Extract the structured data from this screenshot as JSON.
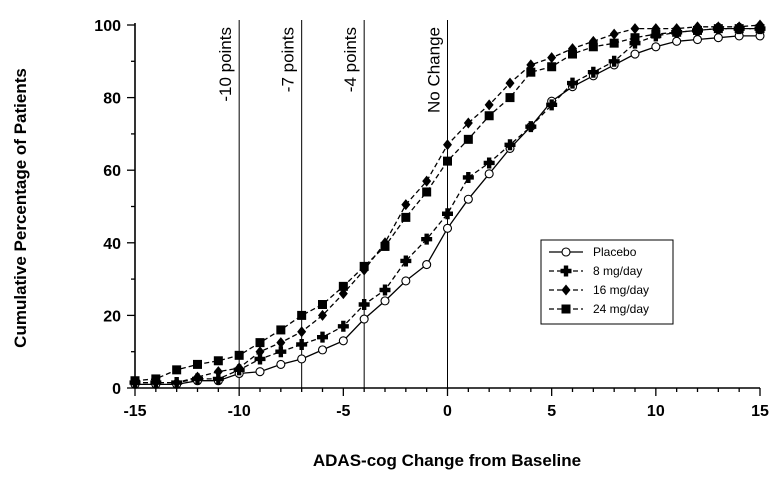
{
  "chart_data": {
    "type": "line",
    "title": "",
    "xlabel": "ADAS-cog Change from Baseline",
    "ylabel": "Cumulative Percentage of Patients",
    "xlim": [
      -15,
      15
    ],
    "ylim": [
      0,
      100
    ],
    "x_ticks": [
      -15,
      -10,
      -5,
      0,
      5,
      10,
      15
    ],
    "y_ticks": [
      0,
      20,
      40,
      60,
      80,
      100
    ],
    "grid": false,
    "legend_position": "right",
    "reference_lines": [
      {
        "x": -10,
        "label": "-10 points"
      },
      {
        "x": -7,
        "label": "-7 points"
      },
      {
        "x": -4,
        "label": "-4 points"
      },
      {
        "x": 0,
        "label": "No Change"
      }
    ],
    "x": [
      -15,
      -14,
      -13,
      -12,
      -11,
      -10,
      -9,
      -8,
      -7,
      -6,
      -5,
      -4,
      -3,
      -2,
      -1,
      0,
      1,
      2,
      3,
      4,
      5,
      6,
      7,
      8,
      9,
      10,
      11,
      12,
      13,
      14,
      15
    ],
    "series": [
      {
        "name": "Placebo",
        "marker": "open-circle",
        "dash": "solid",
        "values": [
          1,
          1,
          1,
          2,
          2,
          4,
          4.5,
          6.5,
          8,
          10.5,
          13,
          19,
          24,
          29.5,
          34,
          44,
          52,
          59,
          66,
          72,
          79,
          83,
          86,
          89,
          92,
          94,
          95.5,
          96,
          96.5,
          97,
          97
        ]
      },
      {
        "name": "8 mg/day",
        "marker": "plus-filled",
        "dash": "dashed",
        "values": [
          1.5,
          1.5,
          1.5,
          2.5,
          2.5,
          5,
          8,
          10,
          12,
          14,
          17,
          23,
          27,
          35,
          41,
          48,
          58,
          62,
          67,
          72,
          78,
          84,
          87,
          90,
          95,
          97,
          98,
          98.5,
          99,
          99,
          99
        ]
      },
      {
        "name": "16 mg/day",
        "marker": "filled-diamond",
        "dash": "dashed",
        "values": [
          1.5,
          1.5,
          1.5,
          3,
          4.5,
          5.5,
          10,
          12.5,
          15.5,
          20,
          26,
          32.5,
          40,
          50.5,
          57,
          67,
          73,
          78,
          84,
          89,
          91,
          93.5,
          95.5,
          97.5,
          99,
          99,
          99,
          99.5,
          99.5,
          99.5,
          100
        ]
      },
      {
        "name": "24 mg/day",
        "marker": "filled-square",
        "dash": "dashed",
        "values": [
          2,
          2.5,
          5,
          6.5,
          7.5,
          9,
          12.5,
          16,
          20,
          23,
          28,
          33.5,
          39,
          47,
          54,
          62.5,
          68.5,
          75,
          80,
          87,
          88.5,
          92,
          94,
          95,
          96.5,
          97.5,
          98,
          98.5,
          99,
          99,
          99
        ]
      }
    ]
  }
}
